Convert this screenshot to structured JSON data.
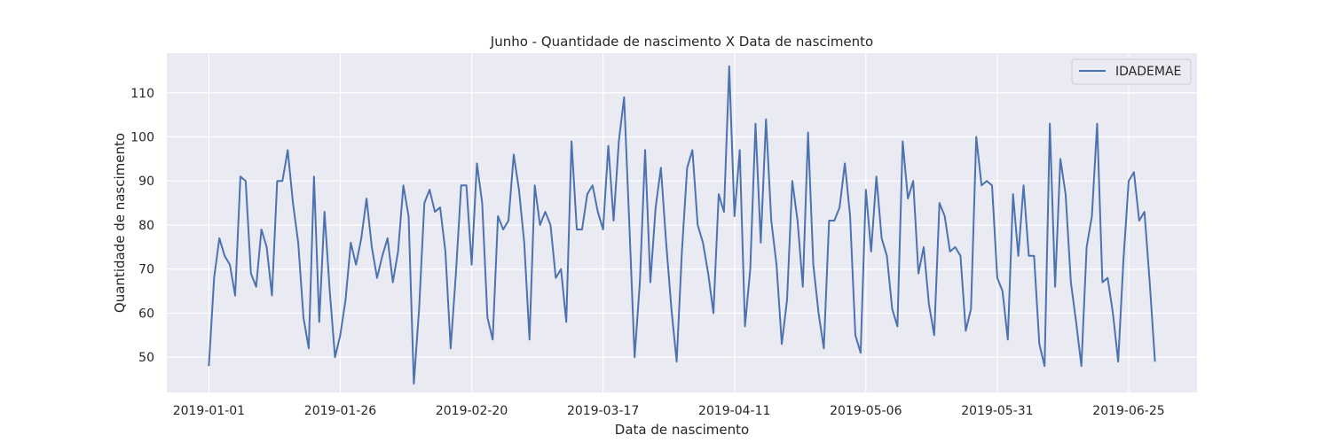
{
  "chart_data": {
    "type": "line",
    "title": "Junho - Quantidade de nascimento X Data de nascimento",
    "xlabel": "Data de nascimento",
    "ylabel": "Quantidade de nascimento",
    "x_start": "2019-01-01",
    "x_end": "2019-06-30",
    "xlim": [
      "2018-12-24",
      "2019-07-08"
    ],
    "ylim": [
      42,
      119
    ],
    "x_ticks": [
      "2019-01-01",
      "2019-01-26",
      "2019-02-20",
      "2019-03-17",
      "2019-04-11",
      "2019-05-06",
      "2019-05-31",
      "2019-06-25"
    ],
    "y_ticks": [
      50,
      60,
      70,
      80,
      90,
      100,
      110
    ],
    "grid": true,
    "legend_position": "top-right",
    "colors": {
      "plot_background": "#eaeaf2",
      "grid": "#ffffff",
      "line": "#4c72b0",
      "text": "#262626"
    },
    "series": [
      {
        "name": "IDADEMAE",
        "values": [
          48,
          68,
          77,
          73,
          71,
          64,
          91,
          90,
          69,
          66,
          79,
          75,
          64,
          90,
          90,
          97,
          85,
          76,
          59,
          52,
          91,
          58,
          83,
          65,
          50,
          55,
          63,
          76,
          71,
          77,
          86,
          75,
          68,
          73,
          77,
          67,
          74,
          89,
          82,
          44,
          61,
          85,
          88,
          83,
          84,
          74,
          52,
          69,
          89,
          89,
          71,
          94,
          85,
          59,
          54,
          82,
          79,
          81,
          96,
          88,
          76,
          54,
          89,
          80,
          83,
          80,
          68,
          70,
          58,
          99,
          79,
          79,
          87,
          89,
          83,
          79,
          98,
          81,
          99,
          109,
          80,
          50,
          67,
          97,
          67,
          84,
          93,
          76,
          61,
          49,
          74,
          93,
          97,
          80,
          76,
          69,
          60,
          87,
          83,
          116,
          82,
          97,
          57,
          70,
          103,
          76,
          104,
          81,
          71,
          53,
          63,
          90,
          81,
          66,
          101,
          71,
          60,
          52,
          81,
          81,
          84,
          94,
          82,
          55,
          51,
          88,
          74,
          91,
          77,
          73,
          61,
          57,
          99,
          86,
          90,
          69,
          75,
          62,
          55,
          85,
          82,
          74,
          75,
          73,
          56,
          61,
          100,
          89,
          90,
          89,
          68,
          65,
          54,
          87,
          73,
          89,
          73,
          73,
          53,
          48,
          103,
          66,
          95,
          87,
          67,
          58,
          48,
          75,
          82,
          103,
          67,
          68,
          60,
          49,
          72,
          90,
          92,
          81,
          83,
          67,
          49
        ]
      }
    ]
  }
}
